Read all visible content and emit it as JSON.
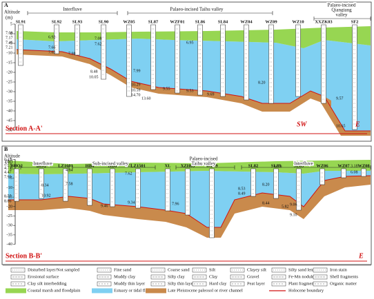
{
  "panel_a": {
    "label": "A",
    "axis_title": "Altitude",
    "axis_unit": "(m)",
    "yticks": [
      5,
      0,
      -5,
      -10,
      -15,
      -20,
      -25,
      -30,
      -35,
      -40,
      -45,
      -50
    ],
    "regions": [
      [
        "Interfluve"
      ],
      [
        "Palaeo-incised Taihu valley"
      ],
      [
        "Palaeo-incised",
        "Qiangtang",
        "valley"
      ]
    ],
    "boreholes": [
      "SL91",
      "SL92",
      "SL93",
      "SL90",
      "WZ05",
      "SL87",
      "WZF01",
      "SL86",
      "SL84",
      "WZ04",
      "WZ09",
      "WZ10",
      "XXZK03",
      "SF2"
    ],
    "depths": [
      "7.08",
      "7.17",
      "7.46",
      "7.21",
      "6.92",
      "7.66",
      "7.63",
      "7.98",
      "7.08",
      "7.62",
      "8.48",
      "10.05",
      "7.99",
      "10.29",
      "10.59",
      "14.70",
      "13.60",
      "9.55",
      "6.95",
      "9.53",
      "9.69",
      "8.20",
      "9.57",
      "10.65"
    ],
    "section": "Section A-A'",
    "end_left": "SW",
    "end_right": "E"
  },
  "panel_b": {
    "label": "B",
    "axis_title": "Altitude",
    "axis_unit": "(m)",
    "yticks": [
      5,
      0,
      -5,
      -10,
      -15,
      -20,
      -25,
      -30,
      -35,
      -40
    ],
    "regions": [
      [
        "Interfluve"
      ],
      [
        "Sub-incised valley"
      ],
      [
        "Palaeo-incised",
        "Taihu valley"
      ],
      [
        "Interfluve"
      ]
    ],
    "boreholes": [
      "BHQ2",
      "BHQ",
      "LZ1601",
      "HB4",
      "HB6",
      "LZ1501",
      "XL",
      "XZH03",
      "WZ09",
      "SL82",
      "SL83",
      "SL85",
      "WZ06",
      "WZ07",
      "WZ08"
    ],
    "depths": [
      "0.45",
      "2.21",
      "4.73",
      "4.47",
      "7.90",
      "8.55",
      "8.86",
      "8.34",
      "10.92",
      "4.84",
      "7.58",
      "9.46",
      "9.34",
      "4.21",
      "7.62",
      "7.96",
      "8.53",
      "8.49",
      "8.20",
      "8.44",
      "9.06",
      "9.10",
      "6.79",
      "5.82",
      "3.18",
      "6.08"
    ],
    "section": "Section B-B'",
    "end_right": "E"
  },
  "legend": {
    "rows": [
      [
        "Disturbed layer/Not sampled",
        "Fine sand",
        "Coarse sand",
        "Silt",
        "Clayey silt",
        "Silty sand lens",
        "Iron stain"
      ],
      [
        "Erosional surface",
        "Muddy clay",
        "Silty clay",
        "Clay",
        "Gravel",
        "Fe-Mn nodule",
        "Shell fragments"
      ],
      [
        "Clay silt interbedding",
        "Muddy thin layer",
        "Silty thin layer",
        "Hard clay",
        "Peat layer",
        "Plant fragments",
        "Organic matter"
      ],
      [
        "Coastal marsh and floodplain",
        "Estuary or tidal flat",
        "Late Pleistocene paleosol or river channel",
        "Holocene boundary"
      ]
    ]
  }
}
